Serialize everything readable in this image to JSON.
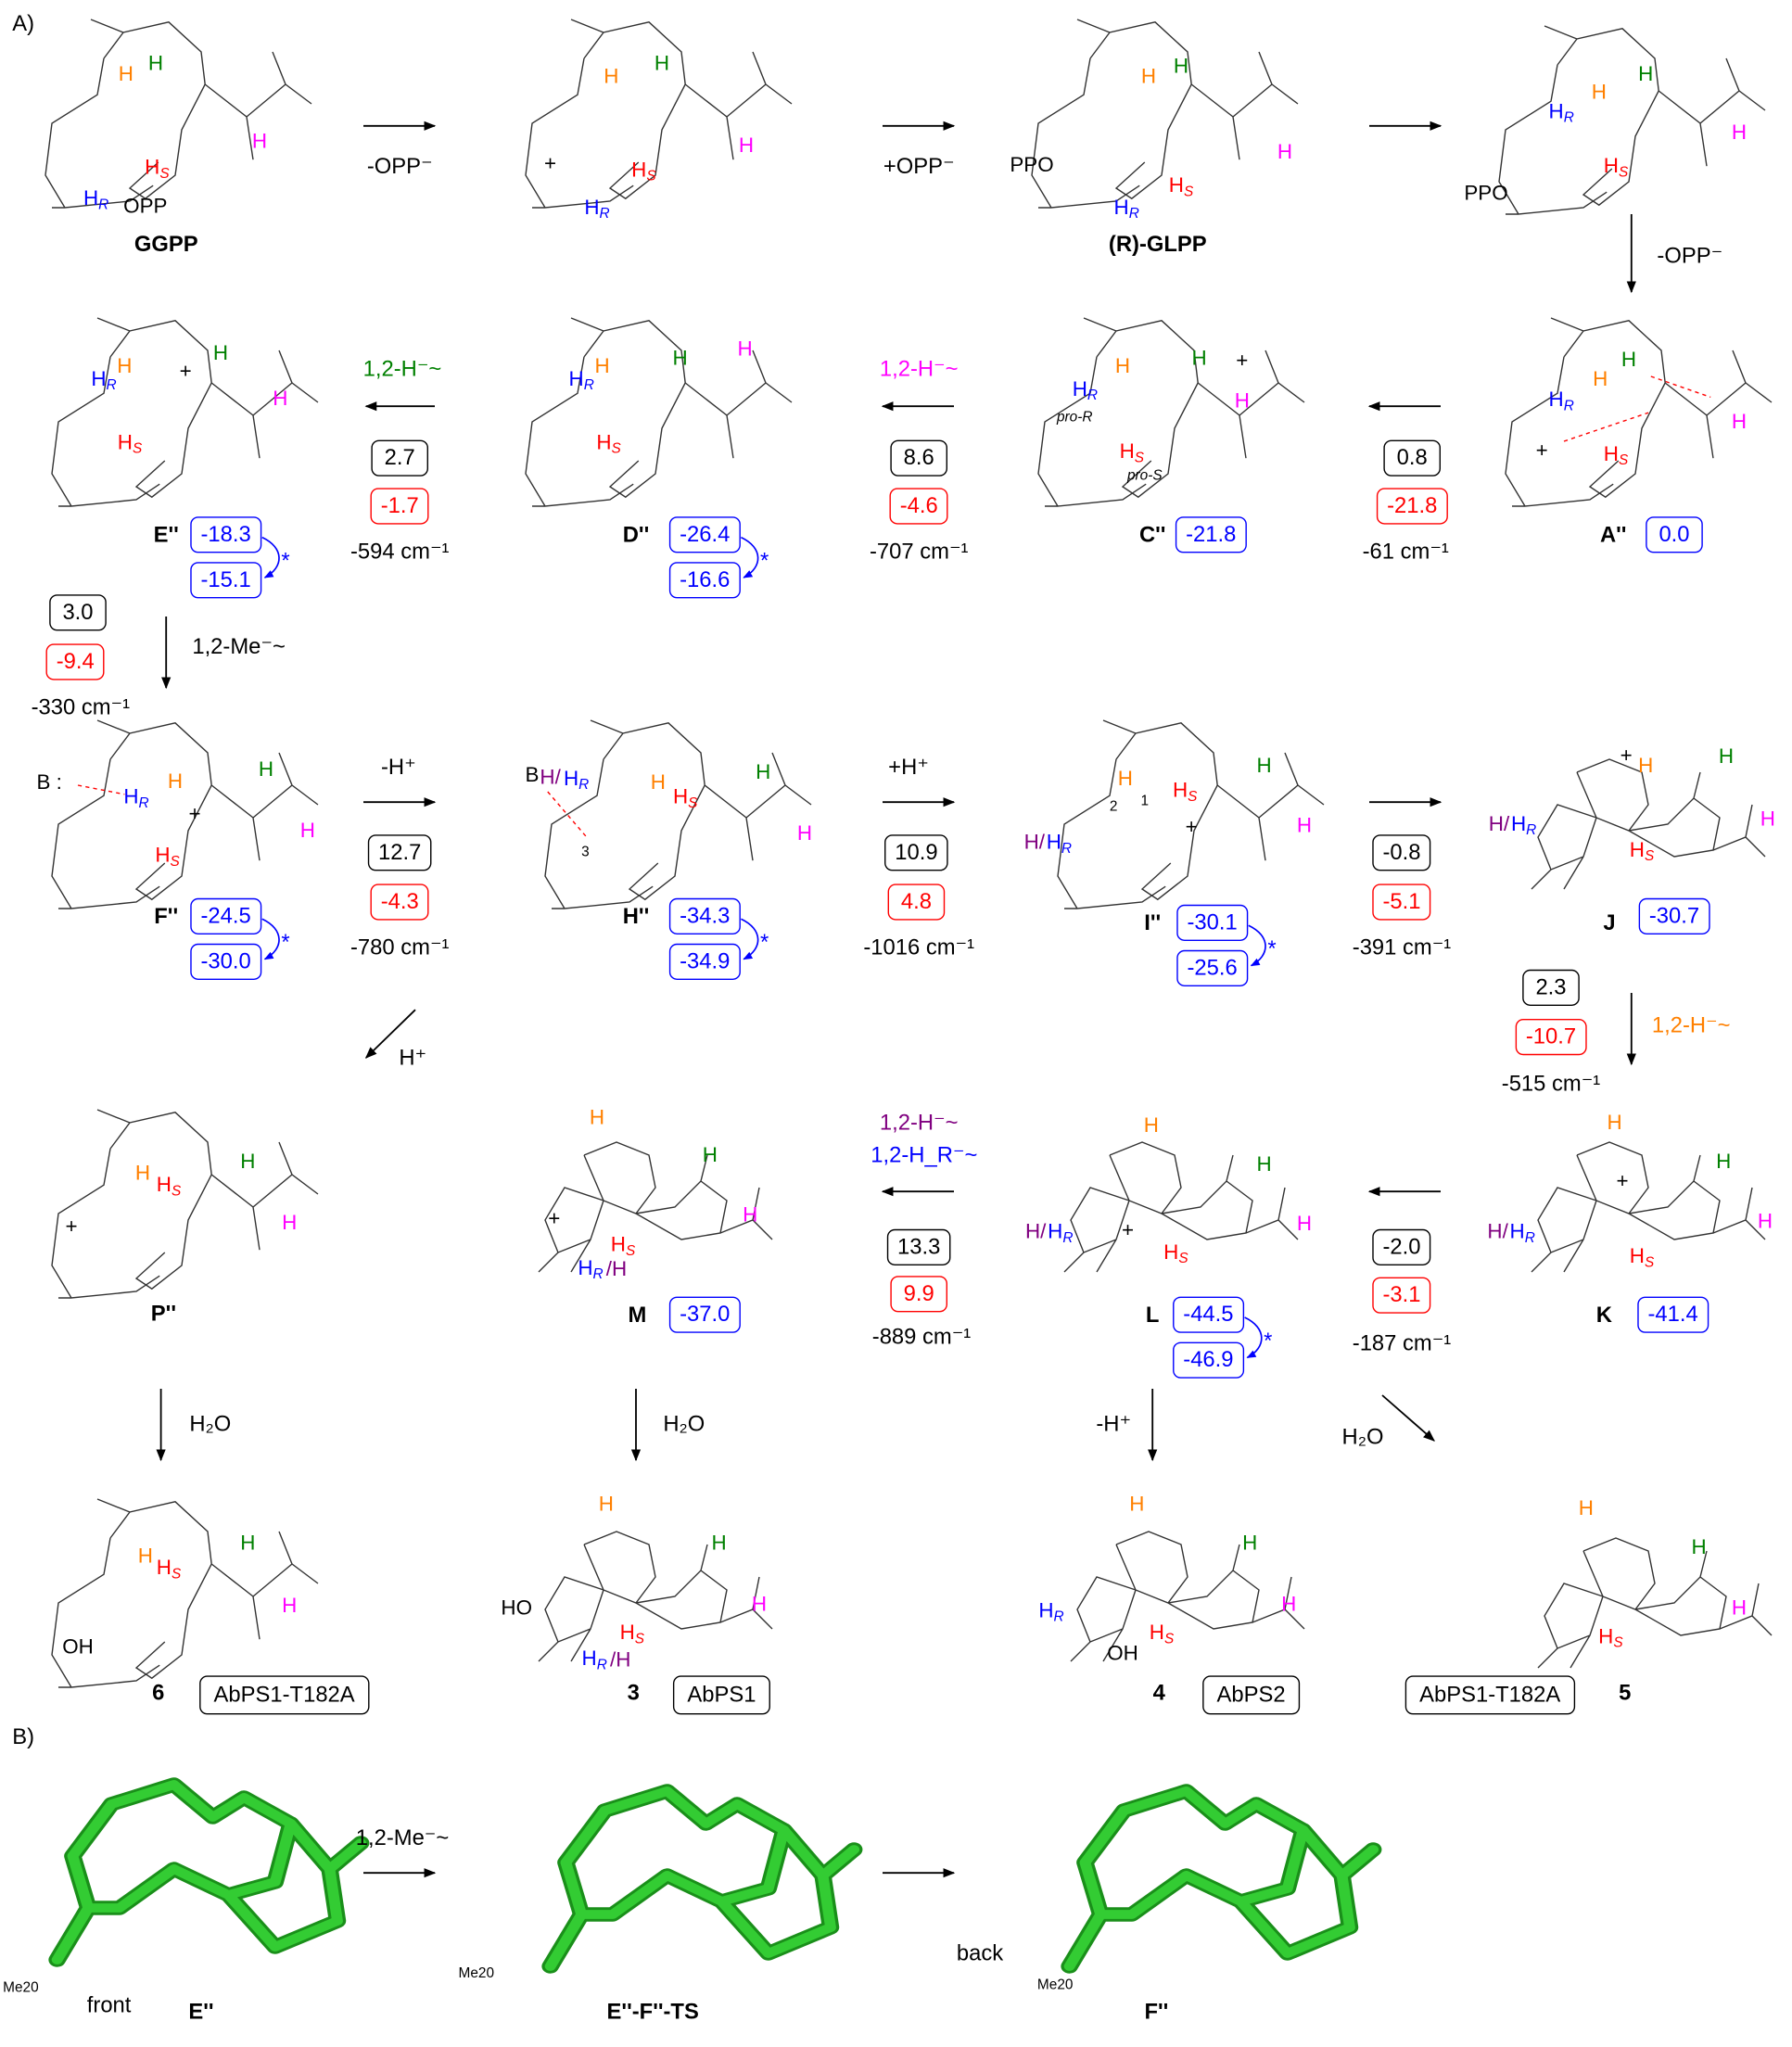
{
  "panels": {
    "a": "A)",
    "b": "B)"
  },
  "colors": {
    "orange": "#ff8000",
    "green": "#008000",
    "magenta": "#ff00ff",
    "red": "#ff0000",
    "blue": "#0000ff",
    "purple": "#800080",
    "black": "#000000",
    "model": "#33cc33"
  },
  "structures": [
    {
      "name": "GGPP",
      "atoms": [
        {
          "t": "H",
          "c": "orange"
        },
        {
          "t": "H",
          "c": "green"
        },
        {
          "t": "H",
          "c": "magenta"
        },
        {
          "t": "H",
          "s": "S",
          "c": "red"
        },
        {
          "t": "H",
          "s": "R",
          "c": "blue"
        },
        {
          "t": "OPP",
          "c": "black"
        }
      ]
    },
    {
      "name": "",
      "atoms": [
        {
          "t": "H",
          "c": "orange"
        },
        {
          "t": "H",
          "c": "green"
        },
        {
          "t": "H",
          "c": "magenta"
        },
        {
          "t": "H",
          "s": "S",
          "c": "red"
        },
        {
          "t": "H",
          "s": "R",
          "c": "blue"
        },
        {
          "t": "+",
          "c": "black"
        }
      ]
    },
    {
      "name": "(R)-GLPP",
      "atoms": [
        {
          "t": "H",
          "c": "orange"
        },
        {
          "t": "H",
          "c": "green"
        },
        {
          "t": "H",
          "c": "magenta"
        },
        {
          "t": "H",
          "s": "S",
          "c": "red"
        },
        {
          "t": "H",
          "s": "R",
          "c": "blue"
        },
        {
          "t": "PPO",
          "c": "black"
        }
      ]
    },
    {
      "name": "",
      "atoms": [
        {
          "t": "H",
          "c": "orange"
        },
        {
          "t": "H",
          "c": "green"
        },
        {
          "t": "H",
          "c": "magenta"
        },
        {
          "t": "H",
          "s": "R",
          "c": "blue"
        },
        {
          "t": "H",
          "s": "S",
          "c": "red"
        },
        {
          "t": "PPO",
          "c": "black"
        }
      ]
    },
    {
      "name": "A''",
      "atoms": [
        {
          "t": "H",
          "c": "orange"
        },
        {
          "t": "H",
          "c": "green"
        },
        {
          "t": "H",
          "c": "magenta"
        },
        {
          "t": "H",
          "s": "R",
          "c": "blue"
        },
        {
          "t": "H",
          "s": "S",
          "c": "red"
        },
        {
          "t": "+",
          "c": "black"
        }
      ]
    },
    {
      "name": "C''",
      "atoms": [
        {
          "t": "H",
          "c": "orange"
        },
        {
          "t": "H",
          "c": "green"
        },
        {
          "t": "H",
          "c": "magenta"
        },
        {
          "t": "H",
          "s": "R",
          "c": "blue"
        },
        {
          "t": "pro-R",
          "c": "black",
          "small": true
        },
        {
          "t": "H",
          "s": "S",
          "c": "red"
        },
        {
          "t": "pro-S",
          "c": "black",
          "small": true
        },
        {
          "t": "+",
          "c": "black"
        }
      ]
    },
    {
      "name": "D''",
      "atoms": [
        {
          "t": "H",
          "c": "orange"
        },
        {
          "t": "H",
          "c": "green"
        },
        {
          "t": "H",
          "c": "magenta"
        },
        {
          "t": "H",
          "s": "R",
          "c": "blue"
        },
        {
          "t": "H",
          "s": "S",
          "c": "red"
        }
      ]
    },
    {
      "name": "E''",
      "atoms": [
        {
          "t": "H",
          "c": "orange"
        },
        {
          "t": "H",
          "c": "green"
        },
        {
          "t": "H",
          "c": "magenta"
        },
        {
          "t": "H",
          "s": "R",
          "c": "blue"
        },
        {
          "t": "H",
          "s": "S",
          "c": "red"
        },
        {
          "t": "+",
          "c": "black"
        }
      ]
    },
    {
      "name": "F''",
      "atoms": [
        {
          "t": "B :",
          "c": "black"
        },
        {
          "t": "H",
          "c": "orange"
        },
        {
          "t": "H",
          "c": "green"
        },
        {
          "t": "H",
          "c": "magenta"
        },
        {
          "t": "H",
          "s": "R",
          "c": "blue"
        },
        {
          "t": "H",
          "s": "S",
          "c": "red"
        },
        {
          "t": "+",
          "c": "black"
        }
      ]
    },
    {
      "name": "H''",
      "atoms": [
        {
          "t": "B",
          "c": "black"
        },
        {
          "t": "H/",
          "c": "purple"
        },
        {
          "t": "H",
          "s": "R",
          "c": "blue"
        },
        {
          "t": "H",
          "c": "orange"
        },
        {
          "t": "H",
          "s": "S",
          "c": "red"
        },
        {
          "t": "H",
          "c": "green"
        },
        {
          "t": "H",
          "c": "magenta"
        },
        {
          "t": "3",
          "c": "black",
          "num": true
        }
      ]
    },
    {
      "name": "I''",
      "atoms": [
        {
          "t": "H",
          "c": "orange"
        },
        {
          "t": "H",
          "s": "S",
          "c": "red"
        },
        {
          "t": "H",
          "c": "green"
        },
        {
          "t": "H",
          "c": "magenta"
        },
        {
          "t": "H/",
          "c": "purple"
        },
        {
          "t": "H",
          "s": "R",
          "c": "blue"
        },
        {
          "t": "2",
          "c": "black",
          "num": true
        },
        {
          "t": "1",
          "c": "black",
          "num": true
        },
        {
          "t": "+",
          "c": "black"
        }
      ]
    },
    {
      "name": "J",
      "atoms": [
        {
          "t": "H",
          "c": "orange"
        },
        {
          "t": "H",
          "c": "green"
        },
        {
          "t": "H",
          "c": "magenta"
        },
        {
          "t": "H/",
          "c": "purple"
        },
        {
          "t": "H",
          "s": "R",
          "c": "blue"
        },
        {
          "t": "H",
          "s": "S",
          "c": "red"
        },
        {
          "t": "+",
          "c": "black"
        }
      ]
    },
    {
      "name": "P''",
      "atoms": [
        {
          "t": "H",
          "c": "orange"
        },
        {
          "t": "H",
          "s": "S",
          "c": "red"
        },
        {
          "t": "H",
          "c": "green"
        },
        {
          "t": "H",
          "c": "magenta"
        },
        {
          "t": "+",
          "c": "black"
        }
      ]
    },
    {
      "name": "M",
      "atoms": [
        {
          "t": "H",
          "c": "orange"
        },
        {
          "t": "H",
          "c": "green"
        },
        {
          "t": "H",
          "c": "magenta"
        },
        {
          "t": "H",
          "s": "S",
          "c": "red"
        },
        {
          "t": "H",
          "s": "R",
          "c": "blue"
        },
        {
          "t": "/H",
          "c": "purple"
        },
        {
          "t": "+",
          "c": "black"
        }
      ]
    },
    {
      "name": "L",
      "atoms": [
        {
          "t": "H",
          "c": "orange"
        },
        {
          "t": "H",
          "c": "green"
        },
        {
          "t": "H",
          "c": "magenta"
        },
        {
          "t": "H/",
          "c": "purple"
        },
        {
          "t": "H",
          "s": "R",
          "c": "blue"
        },
        {
          "t": "H",
          "s": "S",
          "c": "red"
        },
        {
          "t": "+",
          "c": "black"
        }
      ]
    },
    {
      "name": "K",
      "atoms": [
        {
          "t": "H",
          "c": "orange"
        },
        {
          "t": "H",
          "c": "green"
        },
        {
          "t": "H",
          "c": "magenta"
        },
        {
          "t": "H/",
          "c": "purple"
        },
        {
          "t": "H",
          "s": "R",
          "c": "blue"
        },
        {
          "t": "H",
          "s": "S",
          "c": "red"
        },
        {
          "t": "+",
          "c": "black"
        }
      ]
    },
    {
      "name": "6",
      "atoms": [
        {
          "t": "H",
          "c": "orange"
        },
        {
          "t": "H",
          "s": "S",
          "c": "red"
        },
        {
          "t": "H",
          "c": "green"
        },
        {
          "t": "H",
          "c": "magenta"
        },
        {
          "t": "OH",
          "c": "black"
        }
      ]
    },
    {
      "name": "3",
      "atoms": [
        {
          "t": "H",
          "c": "orange"
        },
        {
          "t": "H",
          "c": "green"
        },
        {
          "t": "H",
          "c": "magenta"
        },
        {
          "t": "HO",
          "c": "black"
        },
        {
          "t": "H",
          "s": "S",
          "c": "red"
        },
        {
          "t": "H",
          "s": "R",
          "c": "blue"
        },
        {
          "t": "/H",
          "c": "purple"
        }
      ]
    },
    {
      "name": "4",
      "atoms": [
        {
          "t": "H",
          "c": "orange"
        },
        {
          "t": "H",
          "c": "green"
        },
        {
          "t": "H",
          "c": "magenta"
        },
        {
          "t": "H",
          "s": "R",
          "c": "blue"
        },
        {
          "t": "OH",
          "c": "black"
        },
        {
          "t": "H",
          "s": "S",
          "c": "red"
        }
      ]
    },
    {
      "name": "5",
      "atoms": [
        {
          "t": "H",
          "c": "orange"
        },
        {
          "t": "H",
          "c": "green"
        },
        {
          "t": "H",
          "c": "magenta"
        },
        {
          "t": "H",
          "s": "S",
          "c": "red"
        }
      ]
    }
  ],
  "steps": [
    {
      "label": "-OPP⁻",
      "color": "black"
    },
    {
      "label": "+OPP⁻",
      "color": "black"
    },
    {
      "label": "",
      "color": "black"
    },
    {
      "label": "-OPP⁻",
      "color": "black"
    },
    {
      "label": "",
      "color": "black",
      "barrier": "0.8",
      "delta": "-21.8",
      "freq": "-61 cm⁻¹"
    },
    {
      "label": "1,2-H⁻~",
      "color": "magenta",
      "barrier": "8.6",
      "delta": "-4.6",
      "freq": "-707 cm⁻¹"
    },
    {
      "label": "1,2-H⁻~",
      "color": "green",
      "barrier": "2.7",
      "delta": "-1.7",
      "freq": "-594 cm⁻¹"
    },
    {
      "label": "1,2-Me⁻~",
      "color": "black",
      "barrier": "3.0",
      "delta": "-9.4",
      "freq": "-330 cm⁻¹"
    },
    {
      "label": "-H⁺",
      "color": "black",
      "barrier": "12.7",
      "delta": "-4.3",
      "freq": "-780 cm⁻¹"
    },
    {
      "label": "+H⁺",
      "color": "black",
      "barrier": "10.9",
      "delta": "4.8",
      "freq": "-1016 cm⁻¹"
    },
    {
      "label": "",
      "color": "black",
      "barrier": "-0.8",
      "delta": "-5.1",
      "freq": "-391 cm⁻¹"
    },
    {
      "label": "1,2-H⁻~",
      "color": "orange",
      "barrier": "2.3",
      "delta": "-10.7",
      "freq": "-515 cm⁻¹"
    },
    {
      "label": "",
      "color": "black",
      "barrier": "-2.0",
      "delta": "-3.1",
      "freq": "-187 cm⁻¹"
    },
    {
      "label": "1,2-H⁻~",
      "label2": "1,2-H_R⁻~",
      "color": "purple",
      "color2": "blue",
      "barrier": "13.3",
      "delta": "9.9",
      "freq": "-889 cm⁻¹"
    },
    {
      "label": "H⁺",
      "color": "black"
    },
    {
      "label": "H₂O",
      "color": "black"
    },
    {
      "label": "H₂O",
      "color": "black"
    },
    {
      "label": "-H⁺",
      "color": "black"
    },
    {
      "label": "H₂O",
      "color": "black"
    }
  ],
  "energies": [
    {
      "species": "A''",
      "values": [
        "0.0"
      ]
    },
    {
      "species": "C''",
      "values": [
        "-21.8"
      ]
    },
    {
      "species": "D''",
      "values": [
        "-26.4",
        "-16.6"
      ]
    },
    {
      "species": "E''",
      "values": [
        "-18.3",
        "-15.1"
      ]
    },
    {
      "species": "F''",
      "values": [
        "-24.5",
        "-30.0"
      ]
    },
    {
      "species": "H''",
      "values": [
        "-34.3",
        "-34.9"
      ]
    },
    {
      "species": "I''",
      "values": [
        "-30.1",
        "-25.6"
      ]
    },
    {
      "species": "J",
      "values": [
        "-30.7"
      ]
    },
    {
      "species": "K",
      "values": [
        "-41.4"
      ]
    },
    {
      "species": "L",
      "values": [
        "-44.5",
        "-46.9"
      ]
    },
    {
      "species": "M",
      "values": [
        "-37.0"
      ]
    }
  ],
  "star": "*",
  "enzymes": [
    "AbPS1-T182A",
    "AbPS1",
    "AbPS2",
    "AbPS1-T182A"
  ],
  "panel_b": {
    "models": [
      {
        "name": "E''",
        "view": "front",
        "me": "Me20"
      },
      {
        "name": "E''-F''-TS",
        "view": "",
        "me": "Me20"
      },
      {
        "name": "F''",
        "view": "back",
        "me": "Me20"
      }
    ],
    "step": "1,2-Me⁻~"
  }
}
